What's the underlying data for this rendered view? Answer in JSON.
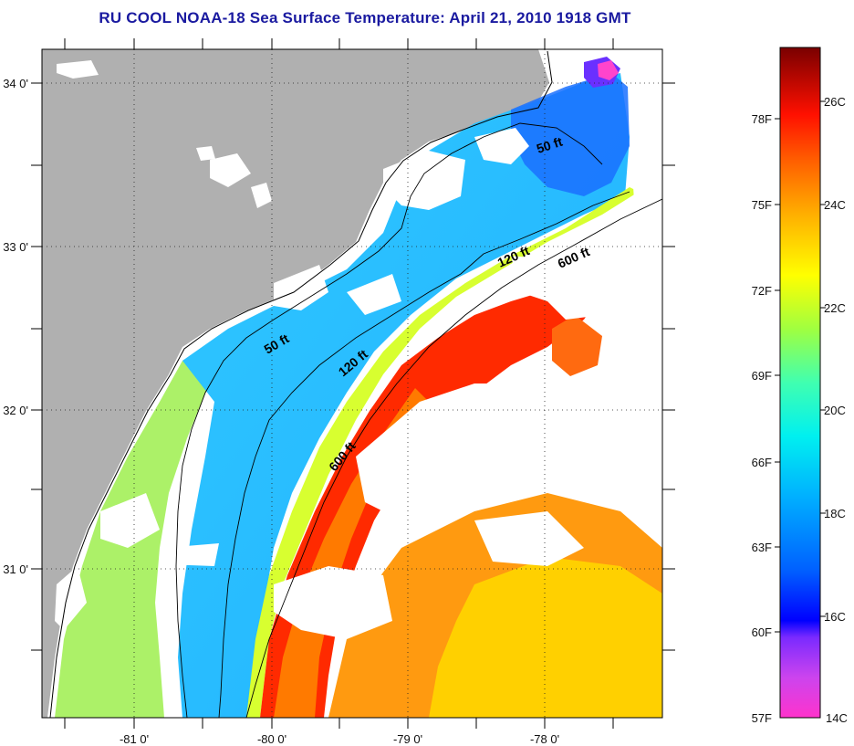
{
  "title": "RU COOL  NOAA-18  Sea Surface Temperature:  April 21, 2010 1918 GMT",
  "axes": {
    "lon_labels": [
      "-81 0'",
      "-80 0'",
      "-79 0'",
      "-78 0'"
    ],
    "lat_labels": [
      "34 0'",
      "33 0'",
      "32 0'",
      "31 0'"
    ]
  },
  "contour_labels": [
    "50 ft",
    "50 ft",
    "120 ft",
    "120 ft",
    "600 ft",
    "600 ft"
  ],
  "colorbar": {
    "fahrenheit": [
      "78F",
      "75F",
      "72F",
      "69F",
      "66F",
      "63F",
      "60F",
      "57F"
    ],
    "celsius": [
      "26C",
      "24C",
      "22C",
      "20C",
      "18C",
      "16C",
      "14C"
    ]
  },
  "colors": {
    "land": "#b0b0b0",
    "cloud": "#ffffff",
    "title": "#1a1aa0"
  }
}
